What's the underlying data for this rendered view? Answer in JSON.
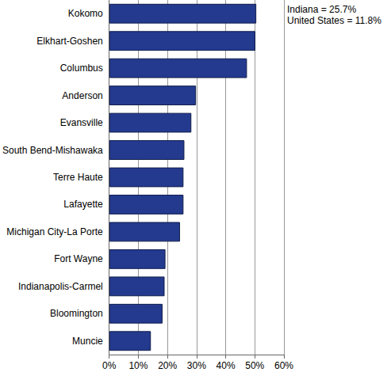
{
  "chart_data": {
    "type": "bar",
    "orientation": "horizontal",
    "categories": [
      "Kokomo",
      "Elkhart-Goshen",
      "Columbus",
      "Anderson",
      "Evansville",
      "South Bend-Mishawaka",
      "Terre Haute",
      "Lafayette",
      "Michigan City-La Porte",
      "Fort Wayne",
      "Indianapolis-Carmel",
      "Bloomington",
      "Muncie"
    ],
    "values": [
      50.5,
      50.2,
      47.3,
      29.8,
      28.2,
      25.8,
      25.5,
      25.5,
      24.3,
      19.3,
      19.0,
      18.3,
      14.3
    ],
    "color": "#233a8f",
    "xlim": [
      0,
      60
    ],
    "xticks": [
      {
        "value": 0,
        "label": "0%"
      },
      {
        "value": 10,
        "label": "10%"
      },
      {
        "value": 20,
        "label": "20%"
      },
      {
        "value": 30,
        "label": "30%"
      },
      {
        "value": 40,
        "label": "40%"
      },
      {
        "value": 50,
        "label": "50%"
      },
      {
        "value": 60,
        "label": "60%"
      }
    ],
    "grid": true,
    "annotations": [
      "Indiana = 25.7%",
      "United States = 11.8%"
    ]
  }
}
